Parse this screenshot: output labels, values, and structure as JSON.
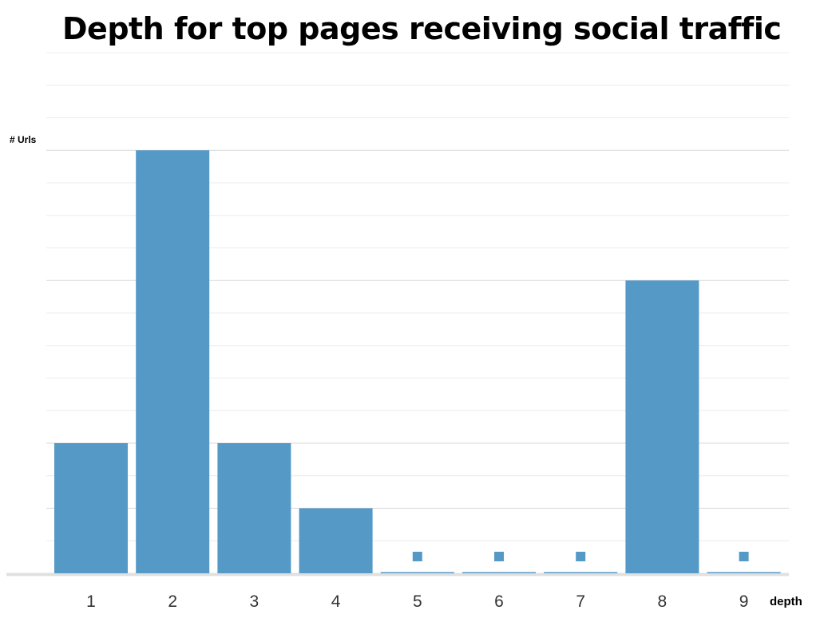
{
  "chart_data": {
    "type": "bar",
    "title": "Depth for top pages receiving social traffic",
    "xlabel": "depth",
    "ylabel": "# Urls",
    "categories": [
      "1",
      "2",
      "3",
      "4",
      "5",
      "6",
      "7",
      "8",
      "9"
    ],
    "values": [
      4,
      13,
      4,
      2,
      0,
      0,
      0,
      9,
      0
    ],
    "ylim": [
      0,
      16
    ],
    "grid": true,
    "bar_color": "#5599c7",
    "zero_value_marker": "square"
  }
}
